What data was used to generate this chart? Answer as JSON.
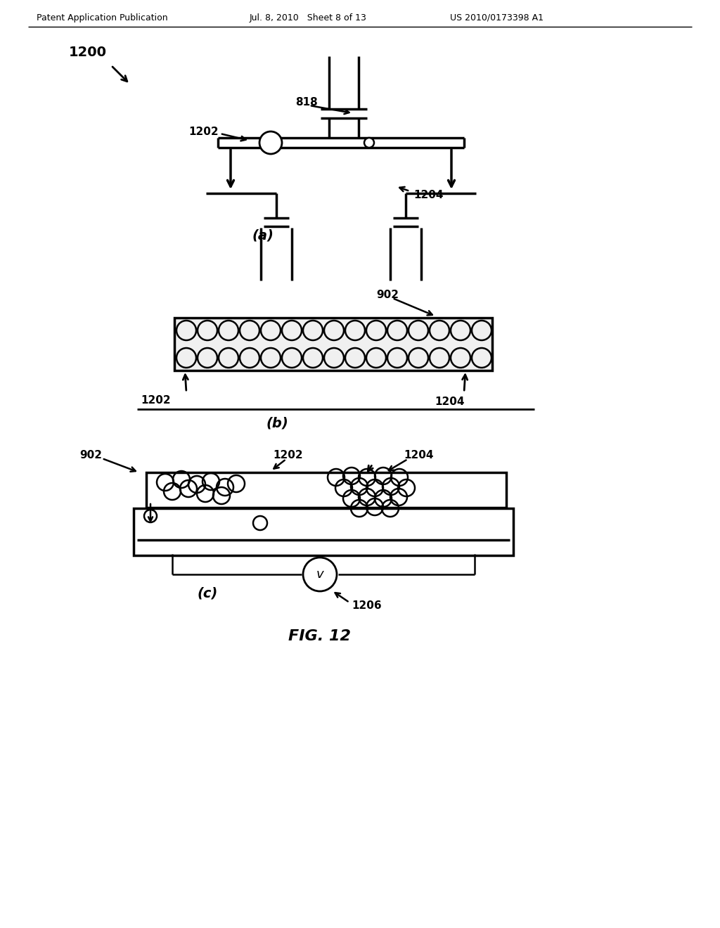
{
  "bg_color": "#ffffff",
  "header_left": "Patent Application Publication",
  "header_mid": "Jul. 8, 2010   Sheet 8 of 13",
  "header_right": "US 2010/0173398 A1",
  "fig_label": "FIG. 12",
  "panel_a_label": "(a)",
  "panel_b_label": "(b)",
  "panel_c_label": "(c)",
  "label_1200": "1200",
  "label_818": "818",
  "label_1202_a": "1202",
  "label_1204_a": "1204",
  "label_1202_b": "1202",
  "label_1204_b": "1204",
  "label_902_b": "902",
  "label_902_c": "902",
  "label_1202_c": "1202",
  "label_1204_c": "1204",
  "label_1206": "1206",
  "panel_a_bezel_lw": 2.5,
  "panel_b_bead_r": 14,
  "panel_c_bead_r": 13
}
